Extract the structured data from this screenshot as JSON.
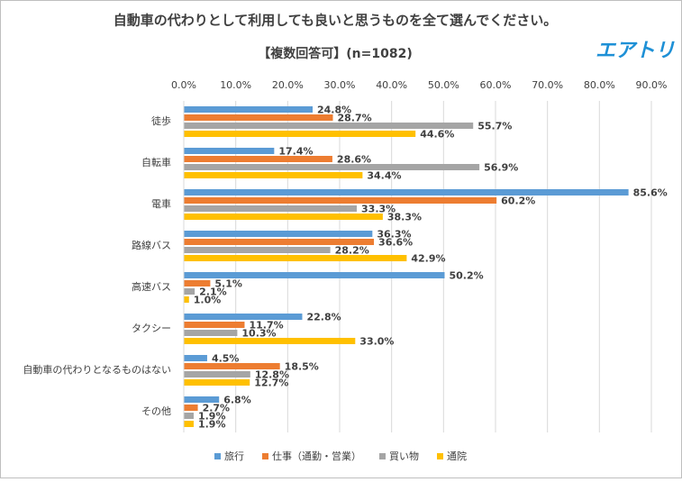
{
  "chart_data": {
    "type": "bar",
    "orientation": "horizontal",
    "title": "自動車の代わりとして利用しても良いと思うものを全て選んでください。",
    "subtitle": "【複数回答可】(n=1082)",
    "logo": "エアトリ",
    "categories": [
      "徒歩",
      "自転車",
      "電車",
      "路線バス",
      "高速バス",
      "タクシー",
      "自動車の代わりとなるものはない",
      "その他"
    ],
    "series": [
      {
        "name": "旅行",
        "color": "#5b9bd5",
        "values": [
          24.8,
          17.4,
          85.6,
          36.3,
          50.2,
          22.8,
          4.5,
          6.8
        ],
        "value_labels": [
          "24.8%",
          "17.4%",
          "85.6%",
          "36.3%",
          "50.2%",
          "22.8%",
          "4.5%",
          "6.8%"
        ]
      },
      {
        "name": "仕事（通勤・営業）",
        "color": "#ed7d31",
        "values": [
          28.7,
          28.6,
          60.2,
          36.6,
          5.1,
          11.7,
          18.5,
          2.7
        ],
        "value_labels": [
          "28.7%",
          "28.6%",
          "60.2%",
          "36.6%",
          "5.1%",
          "11.7%",
          "18.5%",
          "2.7%"
        ]
      },
      {
        "name": "買い物",
        "color": "#a5a5a5",
        "values": [
          55.7,
          56.9,
          33.3,
          28.2,
          2.1,
          10.3,
          12.8,
          1.9
        ],
        "value_labels": [
          "55.7%",
          "56.9%",
          "33.3%",
          "28.2%",
          "2.1%",
          "10.3%",
          "12.8%",
          "1.9%"
        ]
      },
      {
        "name": "通院",
        "color": "#ffc000",
        "values": [
          44.6,
          34.4,
          38.3,
          42.9,
          1.0,
          33.0,
          12.7,
          1.9
        ],
        "value_labels": [
          "44.6%",
          "34.4%",
          "38.3%",
          "42.9%",
          "1.0%",
          "33.0%",
          "12.7%",
          "1.9%"
        ]
      }
    ],
    "xlim": [
      0,
      90
    ],
    "xticks": [
      {
        "value": 0,
        "label": "0.0%"
      },
      {
        "value": 10,
        "label": "10.0%"
      },
      {
        "value": 20,
        "label": "20.0%"
      },
      {
        "value": 30,
        "label": "30.0%"
      },
      {
        "value": 40,
        "label": "40.0%"
      },
      {
        "value": 50,
        "label": "50.0%"
      },
      {
        "value": 60,
        "label": "60.0%"
      },
      {
        "value": 70,
        "label": "70.0%"
      },
      {
        "value": 80,
        "label": "80.0%"
      },
      {
        "value": 90,
        "label": "90.0%"
      }
    ],
    "grid": true,
    "legend": "bottom"
  }
}
